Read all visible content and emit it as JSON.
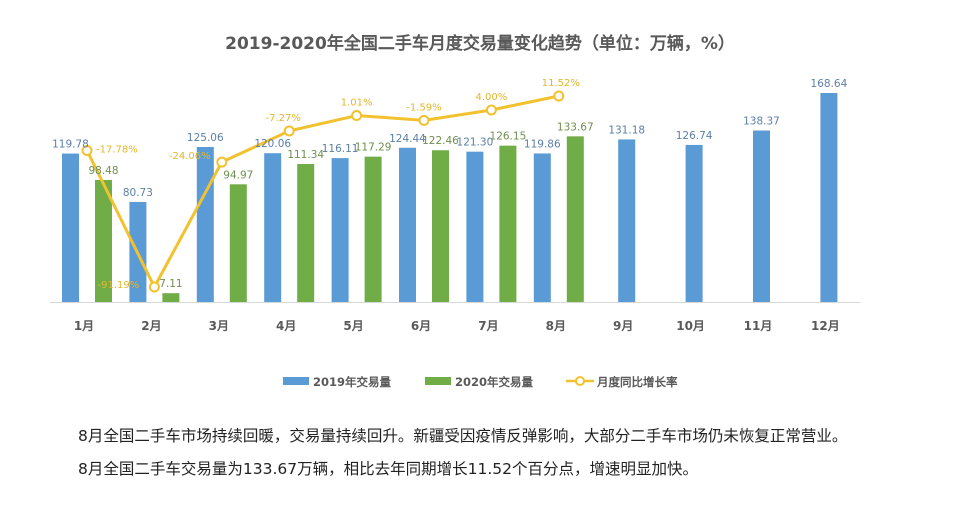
{
  "chart_data": {
    "type": "bar",
    "title": "2019-2020年全国二手车月度交易量变化趋势（单位：万辆，%）",
    "xlabel": "",
    "ylabel": "",
    "categories": [
      "1月",
      "2月",
      "3月",
      "4月",
      "5月",
      "6月",
      "7月",
      "8月",
      "9月",
      "10月",
      "11月",
      "12月"
    ],
    "series": [
      {
        "name": "2019年交易量",
        "type": "bar",
        "color": "#5b9bd5",
        "values": [
          119.78,
          80.73,
          125.06,
          120.06,
          116.11,
          124.44,
          121.3,
          119.86,
          131.18,
          126.74,
          138.37,
          168.64
        ]
      },
      {
        "name": "2020年交易量",
        "type": "bar",
        "color": "#70ad47",
        "values": [
          98.48,
          7.11,
          94.97,
          111.34,
          117.29,
          122.46,
          126.15,
          133.67,
          null,
          null,
          null,
          null
        ]
      },
      {
        "name": "月度同比增长率",
        "type": "line",
        "color": "#f2c12e",
        "unit": "%",
        "values": [
          -17.78,
          -91.19,
          -24.06,
          -7.27,
          1.01,
          -1.59,
          4.0,
          11.52,
          null,
          null,
          null,
          null
        ]
      }
    ],
    "bar_labels_2019": [
      "119.78",
      "80.73",
      "125.06",
      "120.06",
      "116.11",
      "124.44",
      "121.30",
      "119.86",
      "131.18",
      "126.74",
      "138.37",
      "168.64"
    ],
    "bar_labels_2020": [
      "98.48",
      "7.11",
      "94.97",
      "111.34",
      "117.29",
      "122.46",
      "126.15",
      "133.67"
    ],
    "rate_labels": [
      "-17.78%",
      "-91.19%",
      "-24.06%",
      "-7.27%",
      "1.01%",
      "-1.59%",
      "4.00%",
      "11.52%"
    ],
    "ylim_volume": [
      0,
      170
    ],
    "ylim_rate": [
      -100,
      15
    ],
    "grid": false,
    "legend_position": "bottom"
  },
  "caption": {
    "paragraph1": "8月全国二手车市场持续回暖，交易量持续回升。新疆受因疫情反弹影响，大部分二手车市场仍未恢复正常营业。",
    "paragraph2": "8月全国二手车交易量为133.67万辆，相比去年同期增长11.52个百分点，增速明显加快。"
  }
}
